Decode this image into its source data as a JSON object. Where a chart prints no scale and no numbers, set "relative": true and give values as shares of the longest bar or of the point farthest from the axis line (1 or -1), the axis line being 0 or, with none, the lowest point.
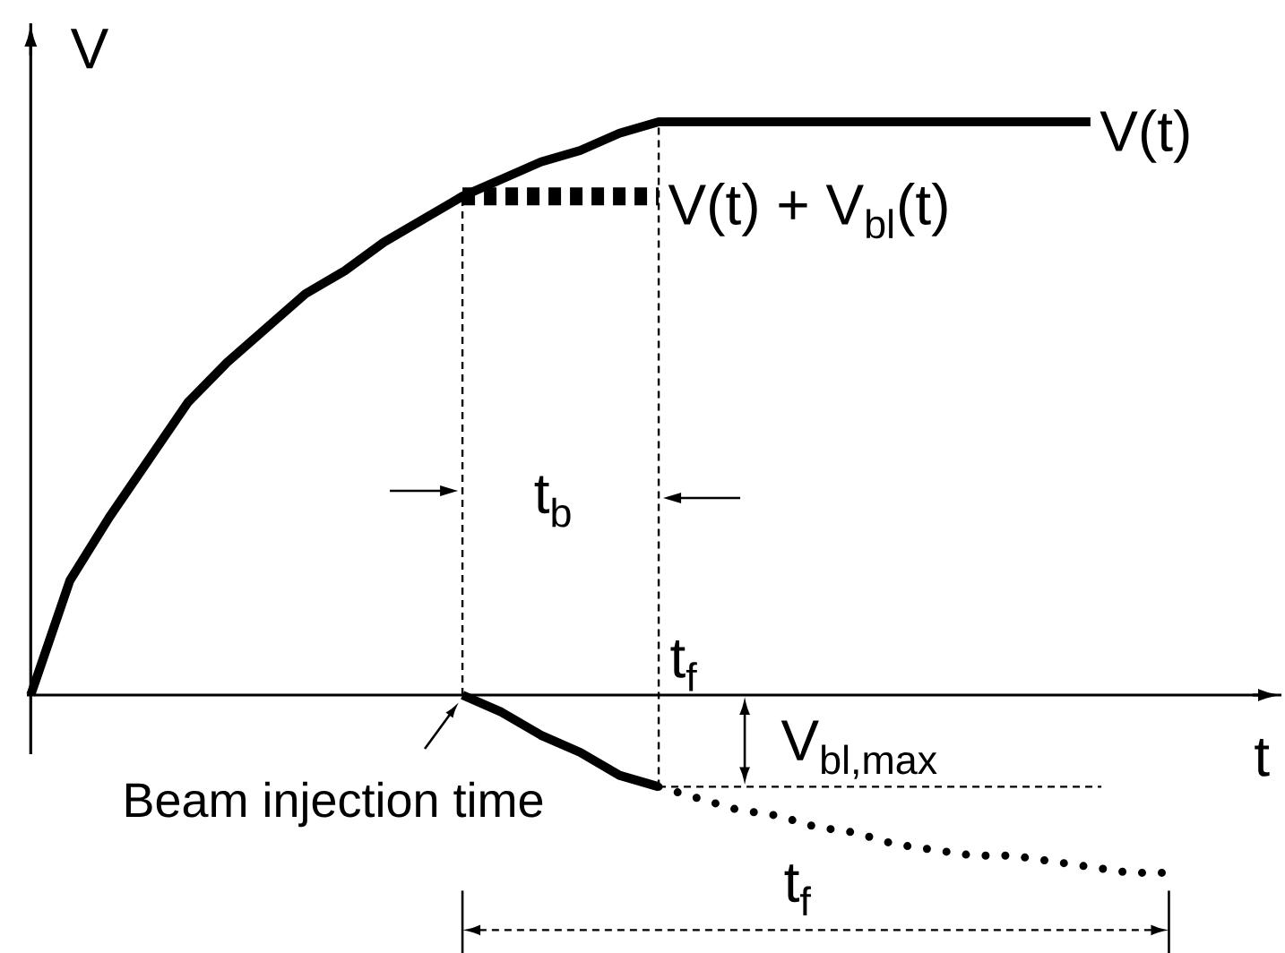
{
  "chart_data": {
    "type": "line",
    "relative": true,
    "xlabel": "t",
    "ylabel": "V",
    "categories": [
      null,
      null,
      null,
      null,
      null,
      null,
      null,
      null,
      null,
      null,
      null,
      null,
      null,
      null,
      null,
      null,
      null,
      null,
      null,
      null,
      null,
      null,
      null,
      null,
      null,
      null,
      null,
      null,
      null,
      null
    ],
    "series": [
      {
        "name": "V(t)",
        "color": "#000000",
        "line_style": "solid",
        "values": [
          0,
          0.2,
          0.31,
          0.41,
          0.51,
          0.58,
          0.64,
          0.7,
          0.74,
          0.79,
          0.83,
          0.87,
          0.9,
          0.93,
          0.95,
          0.98,
          1,
          1,
          1,
          1,
          1,
          1,
          1,
          1,
          1,
          1,
          1,
          1,
          null,
          null
        ]
      },
      {
        "name": "V(t) + V$_{bl}$(t)",
        "color": "#000000",
        "line_style": "dashed",
        "values": [
          null,
          null,
          null,
          null,
          null,
          null,
          null,
          null,
          null,
          null,
          null,
          0.87,
          0.87,
          0.87,
          0.87,
          0.87,
          0.87,
          null,
          null,
          null,
          null,
          null,
          null,
          null,
          null,
          null,
          null,
          null,
          null,
          null
        ]
      },
      {
        "color": "#000000",
        "line_style": "solid",
        "values": [
          null,
          null,
          null,
          null,
          null,
          null,
          null,
          null,
          null,
          null,
          null,
          0,
          -0.03,
          -0.07,
          -0.1,
          -0.14,
          -0.16,
          null,
          null,
          null,
          null,
          null,
          null,
          null,
          null,
          null,
          null,
          null,
          null,
          null
        ]
      },
      {
        "color": "#000000",
        "line_style": "dotted",
        "values": [
          null,
          null,
          null,
          null,
          null,
          null,
          null,
          null,
          null,
          null,
          null,
          null,
          null,
          null,
          null,
          null,
          -0.16,
          -0.18,
          -0.2,
          -0.21,
          -0.23,
          -0.24,
          -0.26,
          -0.27,
          -0.28,
          -0.28,
          -0.29,
          -0.3,
          -0.31,
          -0.31
        ]
      }
    ],
    "ref_lines": [
      {
        "axis": "y",
        "value": -0.16,
        "label": "V$_{bl,max}$",
        "line_style": "dashed"
      }
    ],
    "annotations": [
      "Beam injection time",
      "t$_{f}$",
      "t$_{b}$",
      "t$_{f}$"
    ]
  }
}
